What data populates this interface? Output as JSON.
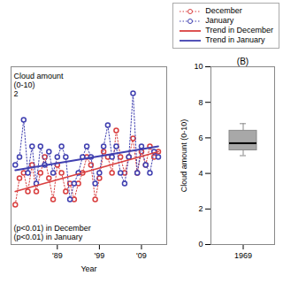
{
  "chart_data": [
    {
      "type": "line",
      "xlabel": "Year",
      "x": [
        1979,
        1980,
        1981,
        1982,
        1983,
        1984,
        1985,
        1986,
        1987,
        1988,
        1989,
        1990,
        1991,
        1992,
        1993,
        1994,
        1995,
        1996,
        1997,
        1998,
        1999,
        2000,
        2001,
        2002,
        2003,
        2004,
        2005,
        2006,
        2007,
        2008,
        2009,
        2010,
        2011,
        2012,
        2013
      ],
      "series": [
        {
          "name": "December",
          "color": "#d94040",
          "line_style": "dotted",
          "marker": "circle",
          "values": [
            5.0,
            6.0,
            6.2,
            5.5,
            6.5,
            5.5,
            6.2,
            6.8,
            6.0,
            5.2,
            6.5,
            6.2,
            5.5,
            5.8,
            5.2,
            5.8,
            6.2,
            6.8,
            6.5,
            5.2,
            6.0,
            7.0,
            6.8,
            6.2,
            7.8,
            6.8,
            6.2,
            6.8,
            7.5,
            6.2,
            7.0,
            6.5,
            7.2,
            6.8,
            7.0
          ]
        },
        {
          "name": "January",
          "color": "#4040b0",
          "line_style": "dotted",
          "marker": "circle",
          "values": [
            6.5,
            6.8,
            8.2,
            6.2,
            7.2,
            5.8,
            7.2,
            6.5,
            7.0,
            6.2,
            6.8,
            7.2,
            6.8,
            5.2,
            5.8,
            6.2,
            6.8,
            7.2,
            6.8,
            5.8,
            6.2,
            7.2,
            8.0,
            6.8,
            7.2,
            6.2,
            5.8,
            6.8,
            9.2,
            6.2,
            7.2,
            6.5,
            6.2,
            7.0,
            6.8
          ]
        },
        {
          "name": "Trend in December",
          "color": "#d94040",
          "line_style": "solid",
          "x": [
            1979,
            2013
          ],
          "values": [
            5.5,
            7.0
          ]
        },
        {
          "name": "Trend in January",
          "color": "#4040b0",
          "line_style": "solid",
          "x": [
            1979,
            2013
          ],
          "values": [
            6.3,
            7.2
          ]
        }
      ],
      "xlim": [
        1978,
        2015
      ],
      "xticks": [
        {
          "value": 1989,
          "label": "'89"
        },
        {
          "value": 1999,
          "label": "'99"
        },
        {
          "value": 2009,
          "label": "'09"
        }
      ],
      "ylim": [
        3.5,
        10.2
      ],
      "yticks": [],
      "tick_labels": "x",
      "annotations": [
        "Cloud amount",
        "(0-10)",
        "2",
        "(p<0.01) in December",
        "(p<0.01) in January"
      ],
      "legend": "upper right"
    },
    {
      "type": "box",
      "title": "(B)",
      "ylabel": "Cloud amount (0-10)",
      "categories": [
        "1969"
      ],
      "whisker_low": [
        5.0
      ],
      "q1": [
        5.3
      ],
      "median": [
        5.7
      ],
      "q3": [
        6.4
      ],
      "whisker_high": [
        6.8
      ],
      "color": "#a8a8a8",
      "ylim": [
        0,
        10
      ],
      "yticks": [
        0,
        2,
        4,
        6,
        8,
        10
      ]
    }
  ]
}
